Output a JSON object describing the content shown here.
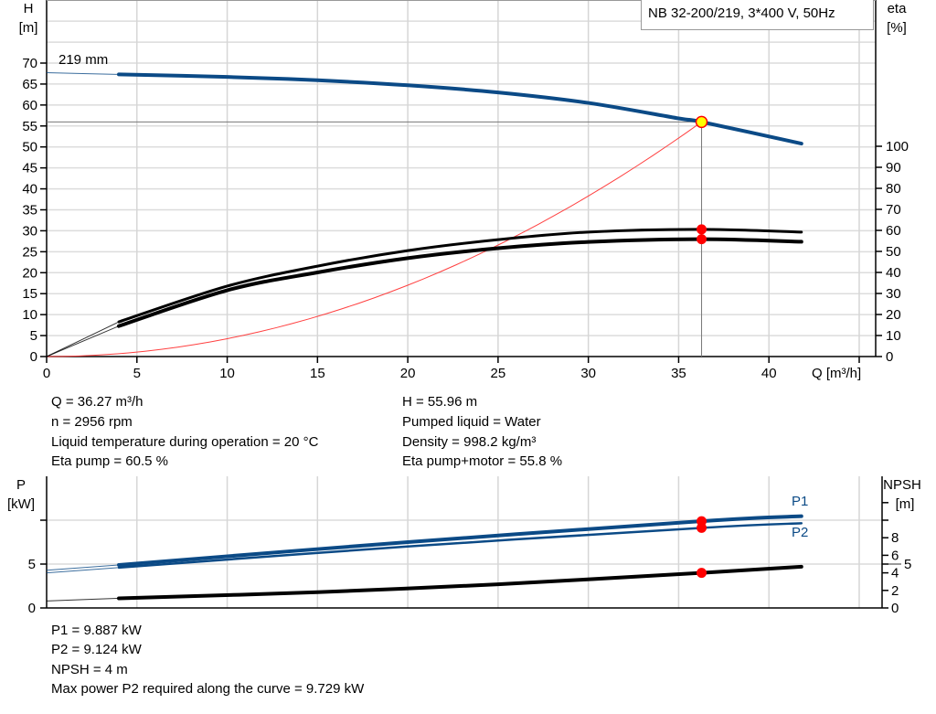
{
  "legend_box": "NB 32-200/219, 3*400 V, 50Hz",
  "chart_data": [
    {
      "type": "line",
      "title": "NB 32-200/219, 3*400 V, 50Hz",
      "xlabel": "Q [m³/h]",
      "ylabel": "H [m]",
      "ylabel_name": "H",
      "ylabel_unit": "[m]",
      "y2label_name": "eta",
      "y2label_unit": "[%]",
      "xlim": [
        0,
        45
      ],
      "x_ticks": [
        "0",
        "5",
        "10",
        "15",
        "20",
        "25",
        "30",
        "35",
        "40"
      ],
      "y_ticks": [
        "0",
        "5",
        "10",
        "15",
        "20",
        "25",
        "30",
        "35",
        "40",
        "45",
        "50",
        "55",
        "60",
        "65",
        "70"
      ],
      "y2lim": [
        0,
        100
      ],
      "y2_ticks": [
        "0",
        "10",
        "20",
        "30",
        "40",
        "50",
        "60",
        "70",
        "80",
        "90",
        "100"
      ],
      "grid": true,
      "curve_label": "219 mm",
      "operating_point": {
        "Q": 36.27,
        "H": 55.96,
        "eta_pump": 60.5,
        "eta_pump_motor": 55.8
      },
      "series": [
        {
          "key": "head",
          "axis": "H",
          "color": "#0b4a86",
          "range_start": 4,
          "x": [
            0,
            4,
            10,
            15,
            20,
            25,
            30,
            35,
            36.27,
            41.8
          ],
          "y": [
            67.7,
            67.3,
            66.7,
            65.9,
            64.7,
            63.0,
            60.5,
            56.8,
            55.96,
            50.8
          ]
        },
        {
          "key": "eta_pump",
          "axis": "eta",
          "color": "#000000",
          "range_start": 4,
          "x": [
            0,
            4,
            10,
            15,
            20,
            25,
            30,
            36.27,
            41.8
          ],
          "y": [
            0,
            16.5,
            33.5,
            43,
            50.4,
            55.6,
            59.2,
            60.5,
            59.2
          ]
        },
        {
          "key": "eta_pump_motor",
          "axis": "eta",
          "color": "#000000",
          "range_start": 4,
          "x": [
            0,
            4,
            10,
            15,
            20,
            25,
            30,
            36.27,
            41.8
          ],
          "y": [
            0,
            14.5,
            31.5,
            40,
            46.8,
            51.5,
            54.5,
            55.8,
            54.6
          ]
        },
        {
          "key": "system_curve",
          "axis": "H",
          "color": "#ff4040",
          "formula_k": 0.04254
        }
      ]
    },
    {
      "type": "line",
      "ylabel_name": "P",
      "ylabel_unit": "[kW]",
      "y2label_name": "NPSH",
      "y2label_unit": "[m]",
      "xlim": [
        0,
        45
      ],
      "ylim": [
        0,
        15
      ],
      "y_ticks": [
        "0",
        "5"
      ],
      "y2lim": [
        0,
        15
      ],
      "y2_ticks": [
        "0",
        "2",
        "4",
        "5",
        "6",
        "8"
      ],
      "grid": true,
      "series": [
        {
          "key": "P1",
          "name": "P1",
          "color": "#0b4a86",
          "range_start": 4,
          "x": [
            0,
            4,
            20,
            36.27,
            41.8
          ],
          "y": [
            4.3,
            4.9,
            7.5,
            9.887,
            10.45
          ]
        },
        {
          "key": "P2",
          "name": "P2",
          "color": "#0b4a86",
          "range_start": 4,
          "x": [
            0,
            4,
            20,
            36.27,
            41.8
          ],
          "y": [
            4.0,
            4.6,
            7.0,
            9.124,
            9.65
          ]
        },
        {
          "key": "NPSH",
          "color": "#000000",
          "range_start": 4,
          "x": [
            0,
            4,
            15,
            25,
            36.27,
            41.8
          ],
          "y": [
            0.8,
            1.1,
            1.8,
            2.7,
            4.0,
            4.7
          ]
        }
      ]
    }
  ],
  "info_top_left": [
    "Q = 36.27 m³/h",
    "n = 2956 rpm",
    "Liquid temperature during operation = 20 °C",
    "Eta pump = 60.5 %"
  ],
  "info_top_right": [
    "H = 55.96 m",
    "Pumped liquid = Water",
    "Density = 998.2 kg/m³",
    "Eta pump+motor = 55.8 %"
  ],
  "info_bottom": [
    "P1 = 9.887 kW",
    "P2 = 9.124 kW",
    "NPSH = 4 m",
    "Max power P2 required along the curve = 9.729 kW"
  ]
}
